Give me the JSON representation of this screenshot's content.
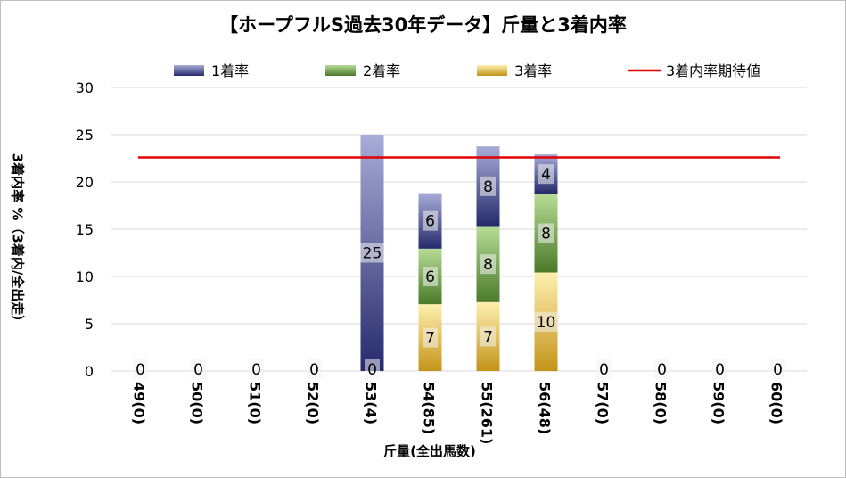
{
  "chart_data": {
    "type": "bar",
    "stacked": true,
    "title": "【ホープフルS過去30年データ】斤量と3着内率",
    "xlabel": "斤量(全出馬数)",
    "ylabel": "3着内率 %（3着内/全出走）",
    "ylim": [
      0,
      30
    ],
    "yticks": [
      0,
      5,
      10,
      15,
      20,
      25,
      30
    ],
    "grid": true,
    "legend_position": "top",
    "categories": [
      "49(0)",
      "50(0)",
      "51(0)",
      "52(0)",
      "53(4)",
      "54(85)",
      "55(261)",
      "56(48)",
      "57(0)",
      "58(0)",
      "59(0)",
      "60(0)"
    ],
    "series": [
      {
        "name": "3着率",
        "color": "#c9a227",
        "values": [
          0,
          0,
          0,
          0,
          0,
          7.06,
          7.28,
          10.42,
          0,
          0,
          0,
          0
        ]
      },
      {
        "name": "2着率",
        "color": "#5e8f3a",
        "values": [
          0,
          0,
          0,
          0,
          0,
          5.88,
          8.05,
          8.33,
          0,
          0,
          0,
          0
        ]
      },
      {
        "name": "1着率",
        "color": "#2f3680",
        "values": [
          0,
          0,
          0,
          0,
          25,
          5.88,
          8.43,
          4.17,
          0,
          0,
          0,
          0
        ]
      }
    ],
    "data_labels": {
      "3着率": [
        "0",
        "0",
        "0",
        "0",
        "0",
        "7",
        "7",
        "10",
        "0",
        "0",
        "0",
        "0"
      ],
      "2着率": [
        "",
        "",
        "",
        "",
        "",
        "6",
        "8",
        "8",
        "",
        "",
        "",
        ""
      ],
      "1着率": [
        "",
        "",
        "",
        "",
        "25",
        "6",
        "8",
        "4",
        "",
        "",
        "",
        ""
      ]
    },
    "reference_line": {
      "name": "3着内率期待値",
      "color": "#e00000",
      "value": 22.6
    }
  }
}
